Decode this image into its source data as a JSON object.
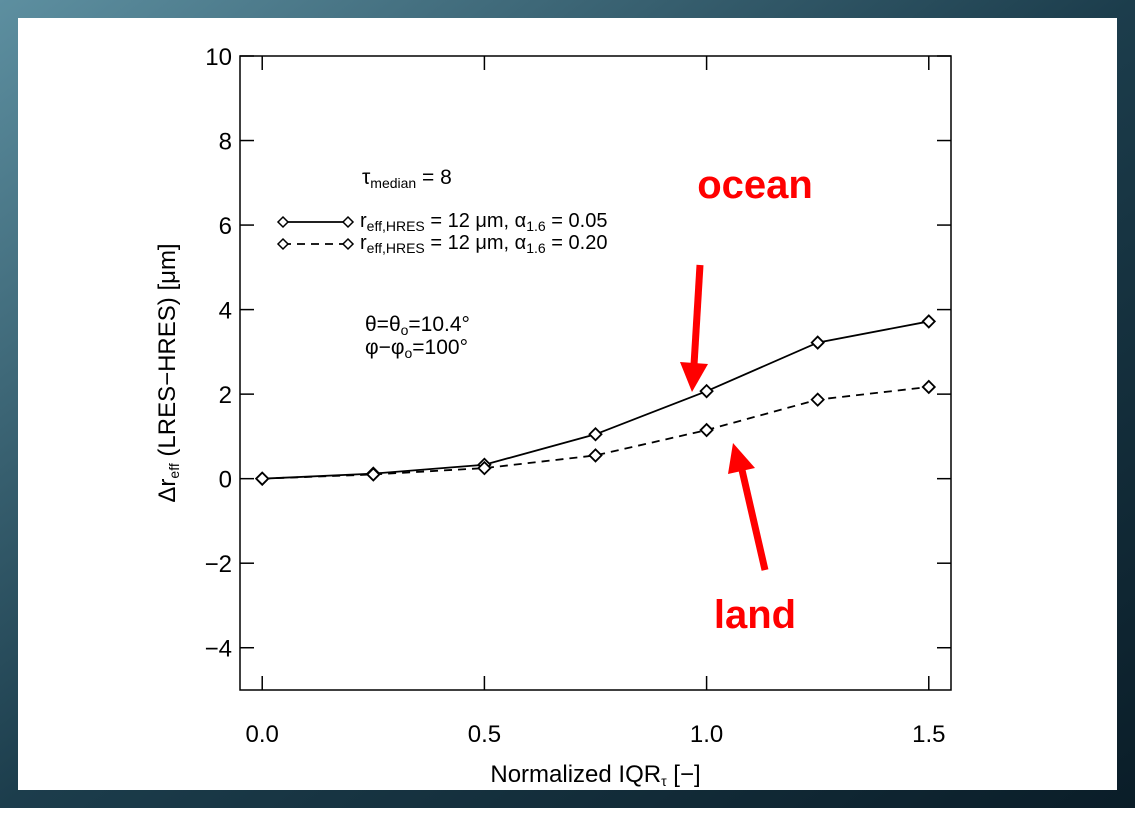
{
  "chart_data": {
    "type": "line",
    "x_label": [
      "Normalized IQR",
      "τ",
      " [−]"
    ],
    "y_label": [
      "Δr",
      "eff",
      " (LRES−HRES) [μm]"
    ],
    "x": [
      0.0,
      0.25,
      0.5,
      0.75,
      1.0,
      1.25,
      1.5
    ],
    "series": [
      {
        "name": [
          "r",
          "eff,HRES",
          " = 12 μm, α",
          "1.6",
          " = 0.05"
        ],
        "color": "#000000",
        "dash": false,
        "values": [
          0,
          0.12,
          0.33,
          1.05,
          2.07,
          3.22,
          3.72
        ]
      },
      {
        "name": [
          "r",
          "eff,HRES",
          " = 12 μm, α",
          "1.6",
          " = 0.20"
        ],
        "color": "#000000",
        "dash": true,
        "values": [
          0,
          0.1,
          0.25,
          0.55,
          1.15,
          1.87,
          2.17
        ]
      }
    ],
    "xlim": [
      -0.05,
      1.55
    ],
    "xticks": [
      {
        "value": 0,
        "label": "0.0"
      },
      0.5,
      {
        "value": 1,
        "label": "1.0"
      },
      1.5
    ],
    "ylim": [
      -5,
      10
    ],
    "yticks": [
      {
        "value": -4,
        "label": "−4"
      },
      {
        "value": -2,
        "label": "−2"
      },
      0,
      2,
      4,
      6,
      8,
      10
    ],
    "grid": false,
    "annotations": [
      [
        "τ",
        "median",
        " = 8"
      ],
      [
        "θ=θ",
        "o",
        "=10.4°"
      ],
      [
        "φ−φ",
        "o",
        "=100°"
      ]
    ],
    "callouts": [
      {
        "text": "ocean",
        "color": "#ff0000"
      },
      {
        "text": "land",
        "color": "#ff0000"
      }
    ]
  }
}
